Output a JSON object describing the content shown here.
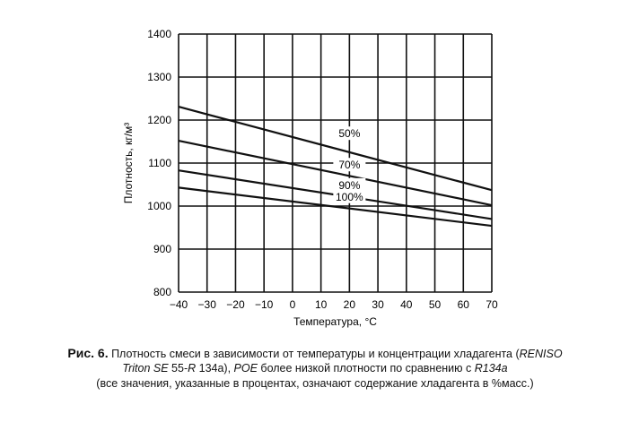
{
  "chart_data": {
    "type": "line",
    "xlabel": "Температура, °C",
    "ylabel": "Плотность, кг/м³",
    "xlim": [
      -40,
      70
    ],
    "ylim": [
      800,
      1400
    ],
    "xticks": [
      -40,
      -30,
      -20,
      -10,
      0,
      10,
      20,
      30,
      40,
      50,
      60,
      70
    ],
    "yticks": [
      800,
      900,
      1000,
      1100,
      1200,
      1300,
      1400
    ],
    "grid": true,
    "series": [
      {
        "name": "50%",
        "x": [
          -40,
          70
        ],
        "y": [
          1231,
          1037
        ],
        "label_at": [
          20,
          1160
        ]
      },
      {
        "name": "70%",
        "x": [
          -40,
          70
        ],
        "y": [
          1152,
          1002
        ],
        "label_at": [
          20,
          1087
        ]
      },
      {
        "name": "90%",
        "x": [
          -40,
          70
        ],
        "y": [
          1083,
          970
        ],
        "label_at": [
          20,
          1040
        ]
      },
      {
        "name": "100%",
        "x": [
          -40,
          70
        ],
        "y": [
          1043,
          954
        ],
        "label_at": [
          20,
          1013
        ]
      }
    ]
  },
  "caption": {
    "prefix": "Рис. 6.",
    "line1a": " Плотность смеси в зависимости от температуры и концентрации хладагента (",
    "line1b": "RENISO",
    "line2a": "Triton SE",
    "line2b": " 55-",
    "line2c": "R",
    "line2d": " 134a), ",
    "line2e": "POE",
    "line2f": " более низкой плотности по сравнению с ",
    "line2g": "R134a",
    "line3": "(все значения, указанные в процентах, означают содержание хладагента в %масс.)"
  }
}
